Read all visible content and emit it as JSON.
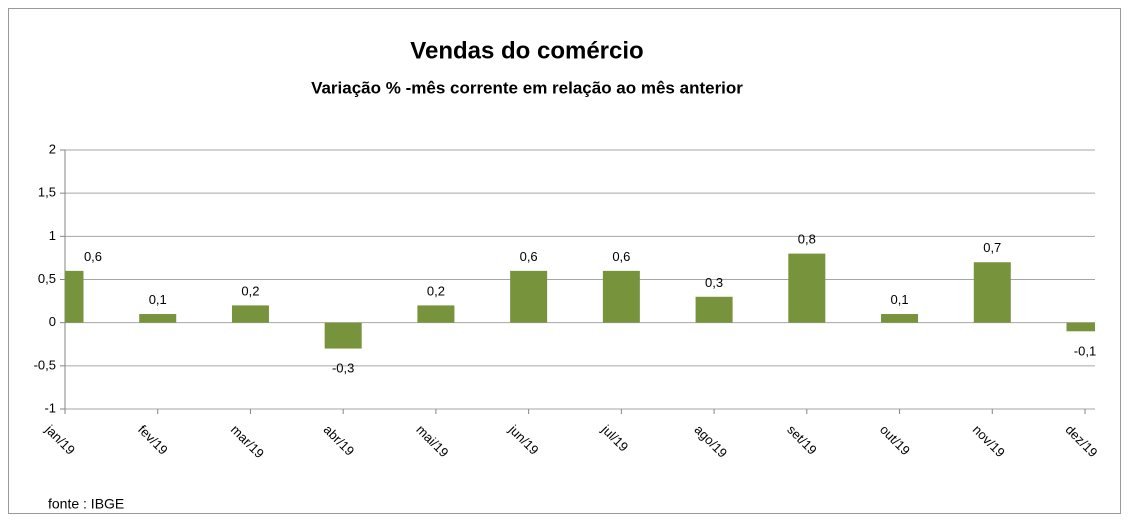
{
  "chart_data": {
    "type": "bar",
    "title": "Vendas do comércio",
    "subtitle": "Variação % -mês corrente em relação ao mês anterior",
    "source": "fonte : IBGE",
    "categories": [
      "jan/19",
      "fev/19",
      "mar/19",
      "abr/19",
      "mai/19",
      "jun/19",
      "jul/19",
      "ago/19",
      "set/19",
      "out/19",
      "nov/19",
      "dez/19"
    ],
    "values": [
      0.6,
      0.1,
      0.2,
      -0.3,
      0.2,
      0.6,
      0.6,
      0.3,
      0.8,
      0.1,
      0.7,
      -0.1
    ],
    "value_labels": [
      "0,6",
      "0,1",
      "0,2",
      "-0,3",
      "0,2",
      "0,6",
      "0,6",
      "0,3",
      "0,8",
      "0,1",
      "0,7",
      "-0,1"
    ],
    "color": "#77933c",
    "ylim": [
      -1,
      2
    ],
    "yticks": [
      -1,
      {
        "value": -0.5,
        "label": "-0,5"
      },
      0,
      {
        "value": 0.5,
        "label": "0,5"
      },
      1,
      {
        "value": 1.5,
        "label": "1,5"
      },
      2
    ],
    "grid": true
  }
}
